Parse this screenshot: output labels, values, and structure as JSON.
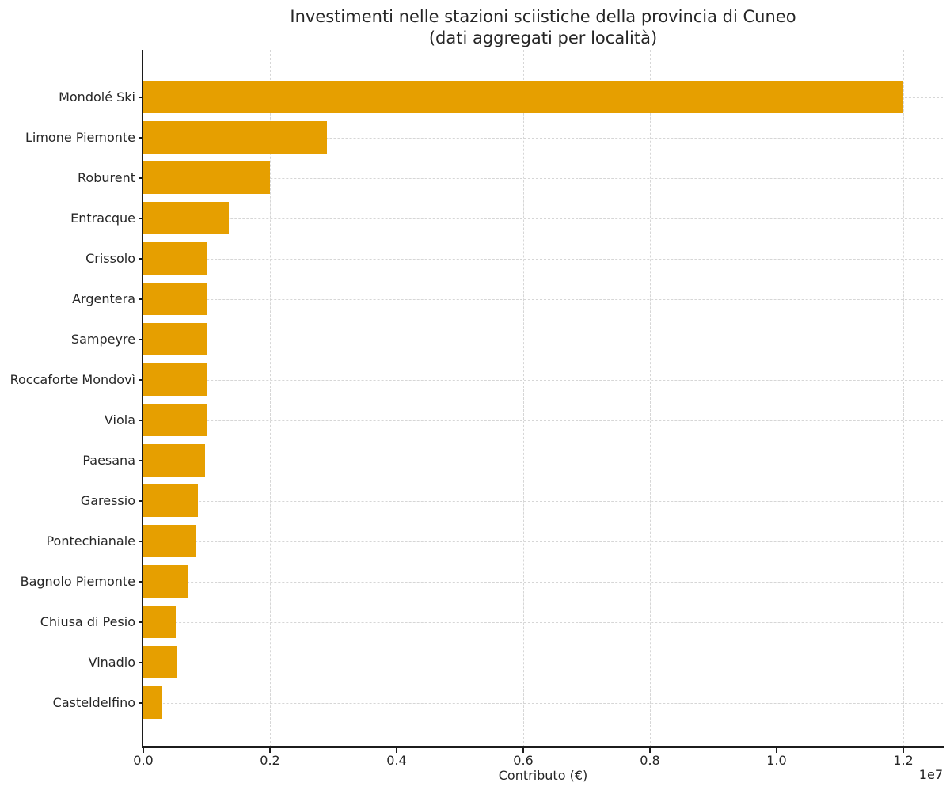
{
  "chart_data": {
    "type": "bar",
    "orientation": "horizontal",
    "title": "Investimenti nelle stazioni sciistiche della provincia di Cuneo",
    "subtitle": "(dati aggregati per località)",
    "xlabel": "Contributo (€)",
    "ylabel": "",
    "x_offset_label": "1e7",
    "categories": [
      "Mondolé Ski",
      "Limone Piemonte",
      "Roburent",
      "Entracque",
      "Crissolo",
      "Argentera",
      "Sampeyre",
      "Roccaforte Mondovì",
      "Viola",
      "Paesana",
      "Garessio",
      "Pontechianale",
      "Bagnolo Piemonte",
      "Chiusa di Pesio",
      "Vinadio",
      "Casteldelfino"
    ],
    "values": [
      12000000,
      2900000,
      2000000,
      1350000,
      1000000,
      1000000,
      1000000,
      1000000,
      1000000,
      975000,
      860000,
      825000,
      705000,
      510000,
      520000,
      290000
    ],
    "xlim": [
      0,
      12625000
    ],
    "x_ticks": [
      0,
      2000000,
      4000000,
      6000000,
      8000000,
      10000000,
      12000000
    ],
    "x_tick_labels": [
      "0.0",
      "0.2",
      "0.4",
      "0.6",
      "0.8",
      "1.0",
      "1.2"
    ],
    "grid": "both-dashed",
    "legend": "none",
    "colors": {
      "bar": "#E69F00",
      "grid": "#d6d6d6",
      "spine": "#1c1c1c",
      "text": "#262626",
      "background": "#ffffff"
    }
  }
}
